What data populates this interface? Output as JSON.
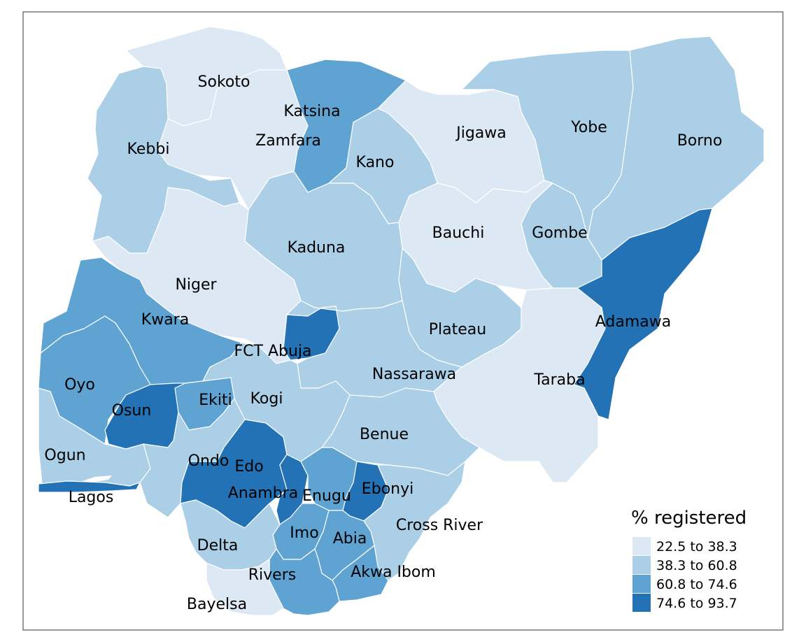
{
  "legend": {
    "title": "% registered",
    "classes": [
      {
        "label": "22.5 to 38.3",
        "color": "#dde8f5"
      },
      {
        "label": "38.3 to 60.8",
        "color": "#abcfe6"
      },
      {
        "label": "60.8 to 74.6",
        "color": "#5ea3d2"
      },
      {
        "label": "74.6 to 93.7",
        "color": "#2272b5"
      }
    ]
  },
  "states": [
    {
      "name": "Sokoto",
      "class": 0
    },
    {
      "name": "Katsina",
      "class": 2
    },
    {
      "name": "Zamfara",
      "class": 0
    },
    {
      "name": "Kebbi",
      "class": 1
    },
    {
      "name": "Jigawa",
      "class": 0
    },
    {
      "name": "Yobe",
      "class": 1
    },
    {
      "name": "Borno",
      "class": 1
    },
    {
      "name": "Kano",
      "class": 1
    },
    {
      "name": "Bauchi",
      "class": 0
    },
    {
      "name": "Gombe",
      "class": 1
    },
    {
      "name": "Kaduna",
      "class": 1
    },
    {
      "name": "Niger",
      "class": 0
    },
    {
      "name": "Adamawa",
      "class": 3
    },
    {
      "name": "Kwara",
      "class": 2
    },
    {
      "name": "Plateau",
      "class": 1
    },
    {
      "name": "FCT Abuja",
      "class": 3
    },
    {
      "name": "Nassarawa",
      "class": 1
    },
    {
      "name": "Taraba",
      "class": 0
    },
    {
      "name": "Oyo",
      "class": 2
    },
    {
      "name": "Osun",
      "class": 3
    },
    {
      "name": "Ekiti",
      "class": 2
    },
    {
      "name": "Kogi",
      "class": 1
    },
    {
      "name": "Benue",
      "class": 1
    },
    {
      "name": "Ogun",
      "class": 1
    },
    {
      "name": "Ondo",
      "class": 1
    },
    {
      "name": "Edo",
      "class": 3
    },
    {
      "name": "Anambra",
      "class": 3
    },
    {
      "name": "Enugu",
      "class": 2
    },
    {
      "name": "Ebonyi",
      "class": 3
    },
    {
      "name": "Lagos",
      "class": 3
    },
    {
      "name": "Cross River",
      "class": 1
    },
    {
      "name": "Imo",
      "class": 2
    },
    {
      "name": "Abia",
      "class": 2
    },
    {
      "name": "Delta",
      "class": 1
    },
    {
      "name": "Akwa Ibom",
      "class": 2
    },
    {
      "name": "Rivers",
      "class": 2
    },
    {
      "name": "Bayelsa",
      "class": 0
    }
  ]
}
